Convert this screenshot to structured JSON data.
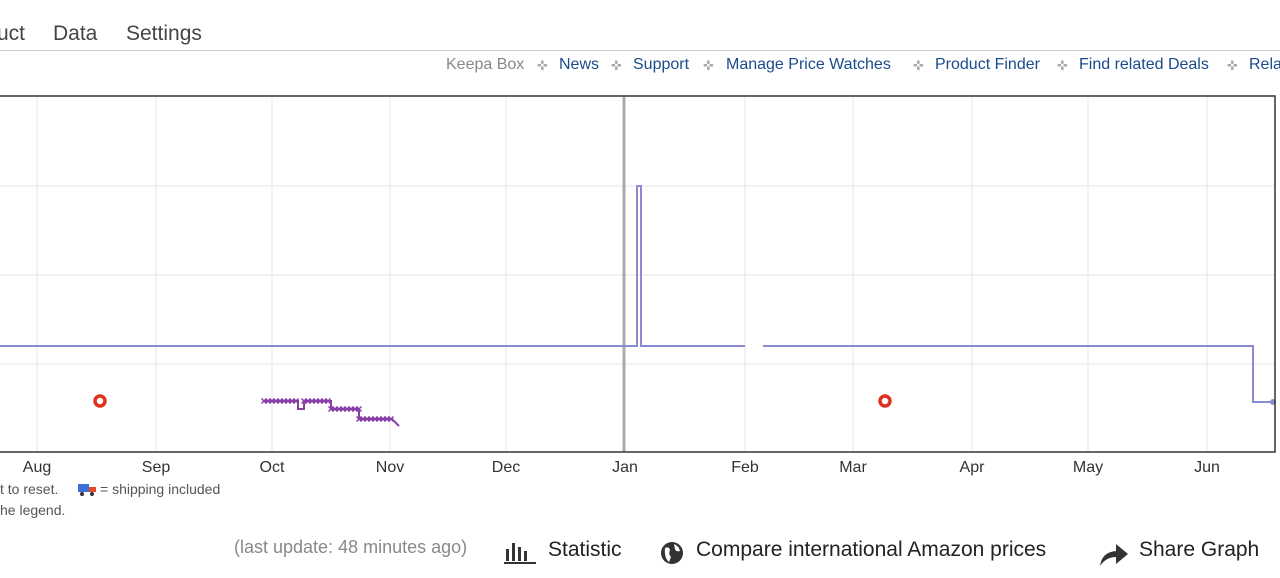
{
  "tabs": [
    "uct",
    "Data",
    "Settings"
  ],
  "nav": {
    "first": "Keepa Box",
    "links": [
      "News",
      "Support",
      "Manage Price Watches",
      "Product Finder",
      "Find related Deals",
      "Rela"
    ]
  },
  "chart": {
    "x_labels": [
      "Aug",
      "Sep",
      "Oct",
      "Nov",
      "Dec",
      "Jan",
      "Feb",
      "Mar",
      "Apr",
      "May",
      "Jun"
    ]
  },
  "legend_notes": {
    "reset": "t to reset.",
    "shipping": "= shipping included",
    "legend": "he legend."
  },
  "footer": {
    "last_update": "(last update: 48 minutes ago)",
    "statistic": "Statistic",
    "compare": "Compare international Amazon prices",
    "share": "Share Graph"
  }
}
